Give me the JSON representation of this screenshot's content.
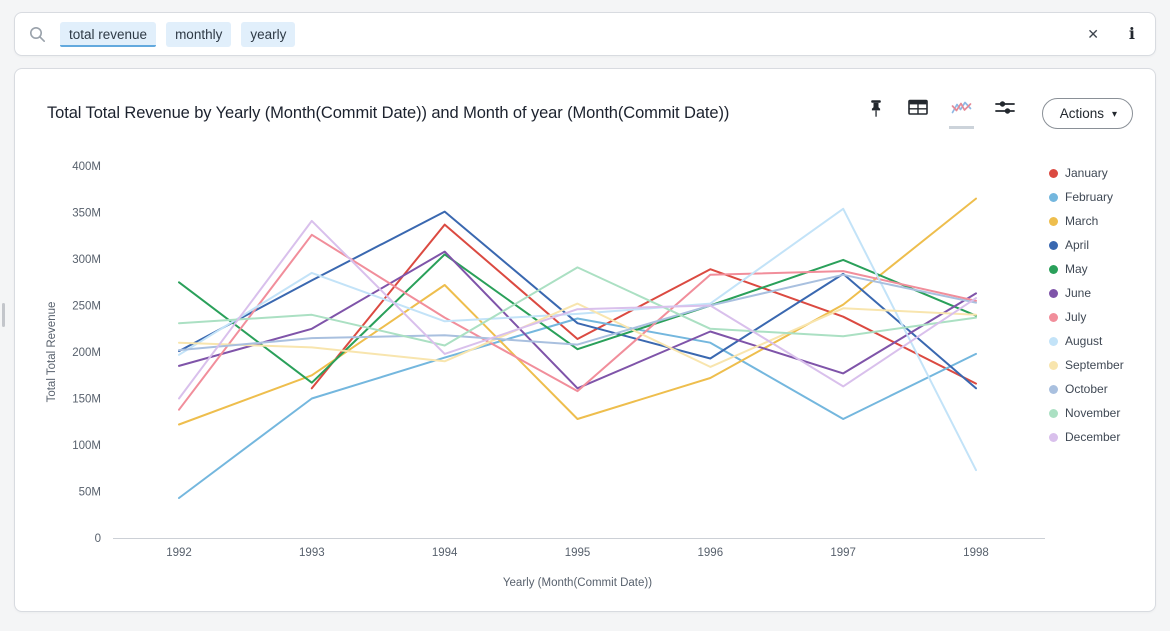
{
  "search": {
    "tokens": [
      {
        "text": "total revenue",
        "active": true
      },
      {
        "text": "monthly",
        "active": false
      },
      {
        "text": "yearly",
        "active": false
      }
    ]
  },
  "icons": {
    "clear": "✕",
    "info": "i",
    "caret": "▾",
    "header_icon_names": [
      "pin-icon",
      "table-icon",
      "chart-icon",
      "chart-config-icon"
    ]
  },
  "card": {
    "title": "Total Total Revenue by Yearly (Month(Commit Date)) and Month of year (Month(Commit Date))",
    "actions_label": "Actions"
  },
  "chart_data": {
    "type": "line",
    "title": "Total Total Revenue by Yearly (Month(Commit Date)) and Month of year (Month(Commit Date))",
    "xlabel": "Yearly (Month(Commit Date))",
    "ylabel": "Total Total Revenue",
    "x": [
      1992,
      1993,
      1994,
      1995,
      1996,
      1997,
      1998
    ],
    "y_tick_labels": [
      "400M",
      "350M",
      "300M",
      "250M",
      "200M",
      "150M",
      "100M",
      "50M",
      "0"
    ],
    "ylim_millions": [
      0,
      400
    ],
    "units": "millions",
    "grid": false,
    "legend_position": "right",
    "series": [
      {
        "name": "January",
        "color": "#db4a41",
        "values": [
          null,
          161,
          337,
          214,
          289,
          238,
          166
        ]
      },
      {
        "name": "February",
        "color": "#74b7de",
        "values": [
          43,
          150,
          194,
          236,
          210,
          128,
          198
        ]
      },
      {
        "name": "March",
        "color": "#eebe4d",
        "values": [
          122,
          175,
          272,
          128,
          172,
          251,
          365
        ]
      },
      {
        "name": "April",
        "color": "#3a68b0",
        "values": [
          201,
          277,
          351,
          231,
          193,
          284,
          161
        ]
      },
      {
        "name": "May",
        "color": "#2aa05a",
        "values": [
          275,
          167,
          305,
          203,
          250,
          299,
          239
        ]
      },
      {
        "name": "June",
        "color": "#7f54a9",
        "values": [
          185,
          225,
          308,
          161,
          222,
          177,
          263
        ]
      },
      {
        "name": "July",
        "color": "#f18e9b",
        "values": [
          138,
          326,
          237,
          158,
          283,
          287,
          255
        ]
      },
      {
        "name": "August",
        "color": "#c3e3f8",
        "values": [
          197,
          285,
          233,
          241,
          252,
          354,
          73
        ]
      },
      {
        "name": "September",
        "color": "#f8e5ae",
        "values": [
          210,
          205,
          190,
          252,
          184,
          247,
          240
        ]
      },
      {
        "name": "October",
        "color": "#a9c0df",
        "values": [
          202,
          215,
          218,
          208,
          250,
          283,
          253
        ]
      },
      {
        "name": "November",
        "color": "#abe0c3",
        "values": [
          231,
          240,
          207,
          291,
          225,
          217,
          237
        ]
      },
      {
        "name": "December",
        "color": "#d9c0ec",
        "values": [
          150,
          341,
          198,
          246,
          250,
          163,
          258
        ]
      }
    ]
  }
}
